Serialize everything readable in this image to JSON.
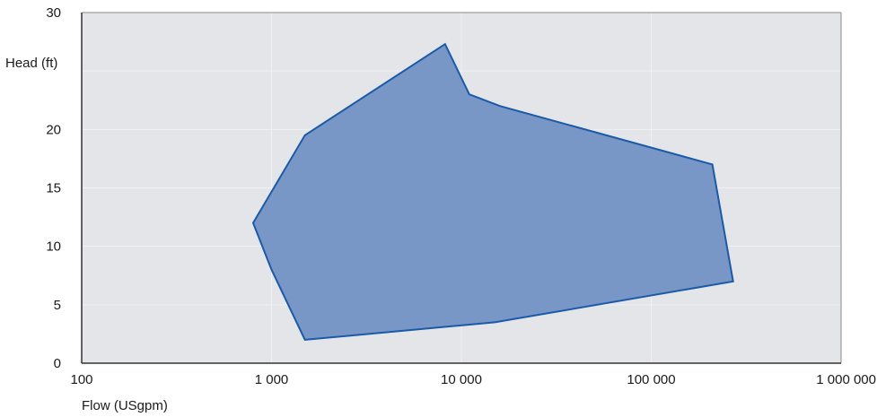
{
  "chart_data": {
    "type": "area",
    "xlabel": "Flow (USgpm)",
    "ylabel": "Head (ft)",
    "xscale": "log",
    "xlim": [
      100,
      1000000
    ],
    "ylim": [
      0,
      30
    ],
    "grid": true,
    "x_ticks": [
      {
        "value": 100,
        "label": "100"
      },
      {
        "value": 1000,
        "label": "1 000"
      },
      {
        "value": 10000,
        "label": "10 000"
      },
      {
        "value": 100000,
        "label": "100 000"
      },
      {
        "value": 1000000,
        "label": "1 000 000"
      }
    ],
    "y_ticks": [
      {
        "value": 0,
        "label": "0"
      },
      {
        "value": 5,
        "label": "5"
      },
      {
        "value": 10,
        "label": "10"
      },
      {
        "value": 15,
        "label": "15"
      },
      {
        "value": 20,
        "label": "20"
      },
      {
        "value": 30,
        "label": "30"
      }
    ],
    "series": [
      {
        "points": [
          {
            "x": 1500,
            "y": 2
          },
          {
            "x": 15000,
            "y": 3.5
          },
          {
            "x": 270000,
            "y": 7
          },
          {
            "x": 210000,
            "y": 17
          },
          {
            "x": 16000,
            "y": 22
          },
          {
            "x": 11000,
            "y": 23
          },
          {
            "x": 8200,
            "y": 27.3
          },
          {
            "x": 1500,
            "y": 19.5
          },
          {
            "x": 800,
            "y": 12
          },
          {
            "x": 1000,
            "y": 8
          }
        ]
      }
    ],
    "colors": {
      "plot_background": "#e3e5e8",
      "fill": "#7897c7",
      "stroke": "#1a5aa8",
      "grid": "#f0f1f3",
      "frame": "#8a8a8a"
    }
  }
}
